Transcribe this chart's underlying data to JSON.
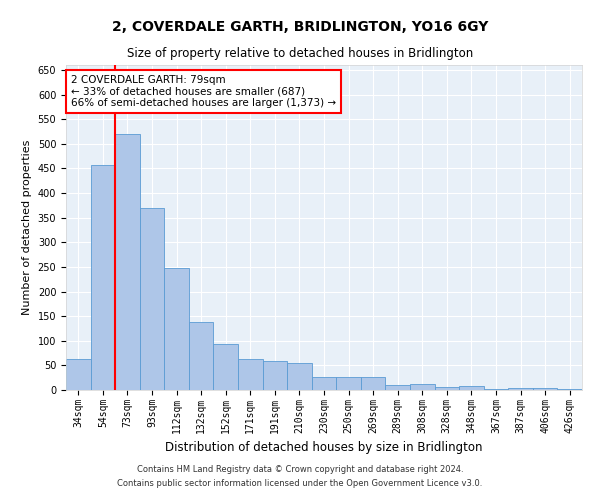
{
  "title": "2, COVERDALE GARTH, BRIDLINGTON, YO16 6GY",
  "subtitle": "Size of property relative to detached houses in Bridlington",
  "xlabel": "Distribution of detached houses by size in Bridlington",
  "ylabel": "Number of detached properties",
  "footer_line1": "Contains HM Land Registry data © Crown copyright and database right 2024.",
  "footer_line2": "Contains public sector information licensed under the Open Government Licence v3.0.",
  "categories": [
    "34sqm",
    "54sqm",
    "73sqm",
    "93sqm",
    "112sqm",
    "132sqm",
    "152sqm",
    "171sqm",
    "191sqm",
    "210sqm",
    "230sqm",
    "250sqm",
    "269sqm",
    "289sqm",
    "308sqm",
    "328sqm",
    "348sqm",
    "367sqm",
    "387sqm",
    "406sqm",
    "426sqm"
  ],
  "values": [
    62,
    456,
    519,
    370,
    248,
    139,
    93,
    62,
    58,
    55,
    26,
    26,
    27,
    11,
    12,
    6,
    8,
    3,
    5,
    4,
    3
  ],
  "bar_color": "#aec6e8",
  "bar_edge_color": "#5a9bd4",
  "vline_color": "red",
  "annotation_title": "2 COVERDALE GARTH: 79sqm",
  "annotation_line1": "← 33% of detached houses are smaller (687)",
  "annotation_line2": "66% of semi-detached houses are larger (1,373) →",
  "annotation_box_color": "white",
  "annotation_box_edgecolor": "red",
  "ylim": [
    0,
    660
  ],
  "yticks": [
    0,
    50,
    100,
    150,
    200,
    250,
    300,
    350,
    400,
    450,
    500,
    550,
    600,
    650
  ],
  "plot_bg_color": "#e8f0f8",
  "grid_color": "white",
  "title_fontsize": 10,
  "subtitle_fontsize": 8.5,
  "ylabel_fontsize": 8,
  "xlabel_fontsize": 8.5,
  "tick_fontsize": 7,
  "annotation_fontsize": 7.5,
  "footer_fontsize": 6
}
